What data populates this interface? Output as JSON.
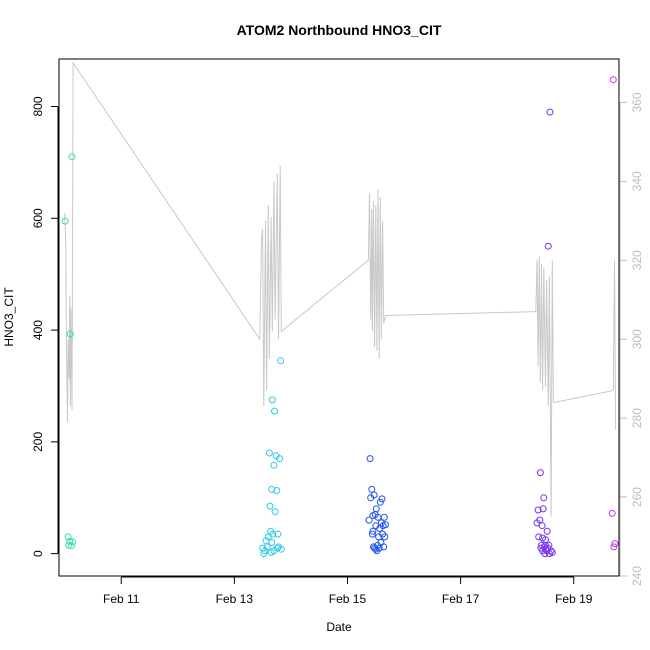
{
  "chart_data": {
    "type": "scatter",
    "title": "ATOM2 Northbound HNO3_CIT",
    "xlabel": "Date",
    "ylabel": "HNO3_CIT",
    "xlim": [
      9.9,
      19.8
    ],
    "ylim": [
      -40,
      885
    ],
    "y2lim": [
      240,
      371
    ],
    "x_ticks": [
      {
        "v": 11,
        "label": "Feb 11"
      },
      {
        "v": 13,
        "label": "Feb 13"
      },
      {
        "v": 15,
        "label": "Feb 15"
      },
      {
        "v": 17,
        "label": "Feb 17"
      },
      {
        "v": 19,
        "label": "Feb 19"
      }
    ],
    "y_ticks": [
      {
        "v": 0,
        "label": "0"
      },
      {
        "v": 200,
        "label": "200"
      },
      {
        "v": 400,
        "label": "400"
      },
      {
        "v": 600,
        "label": "600"
      },
      {
        "v": 800,
        "label": "800"
      }
    ],
    "y2_ticks": [
      {
        "v": 240,
        "label": "240"
      },
      {
        "v": 260,
        "label": "260"
      },
      {
        "v": 280,
        "label": "280"
      },
      {
        "v": 300,
        "label": "300"
      },
      {
        "v": 320,
        "label": "320"
      },
      {
        "v": 340,
        "label": "340"
      },
      {
        "v": 360,
        "label": "360"
      }
    ],
    "colors": {
      "line": "#c8c8c8",
      "axis": "#000000",
      "right_axis": "#bdbdbd"
    },
    "point_groups": [
      {
        "color": "#33e0a6",
        "points": [
          [
            10.01,
            595
          ],
          [
            10.06,
            30
          ],
          [
            10.07,
            15
          ],
          [
            10.09,
            22
          ],
          [
            10.1,
            393
          ],
          [
            10.12,
            14
          ],
          [
            10.13,
            710
          ],
          [
            10.14,
            21
          ]
        ]
      },
      {
        "color": "#2ecbe6",
        "points": [
          [
            13.5,
            10
          ],
          [
            13.52,
            0
          ],
          [
            13.54,
            5
          ],
          [
            13.56,
            23
          ],
          [
            13.58,
            12
          ],
          [
            13.6,
            30
          ],
          [
            13.62,
            180
          ],
          [
            13.63,
            85
          ],
          [
            13.64,
            40
          ],
          [
            13.65,
            2
          ],
          [
            13.66,
            115
          ],
          [
            13.67,
            275
          ],
          [
            13.68,
            35
          ],
          [
            13.7,
            158
          ],
          [
            13.71,
            255
          ],
          [
            13.72,
            75
          ],
          [
            13.74,
            175
          ],
          [
            13.75,
            113
          ],
          [
            13.76,
            10
          ],
          [
            13.77,
            35
          ],
          [
            13.78,
            12
          ],
          [
            13.8,
            170
          ],
          [
            13.82,
            345
          ],
          [
            13.83,
            8
          ],
          [
            13.66,
            20
          ],
          [
            13.7,
            5
          ]
        ]
      },
      {
        "color": "#2255ee",
        "points": [
          [
            15.38,
            60
          ],
          [
            15.4,
            170
          ],
          [
            15.41,
            100
          ],
          [
            15.43,
            115
          ],
          [
            15.44,
            35
          ],
          [
            15.45,
            68
          ],
          [
            15.46,
            12
          ],
          [
            15.47,
            105
          ],
          [
            15.48,
            10
          ],
          [
            15.49,
            70
          ],
          [
            15.5,
            50
          ],
          [
            15.51,
            80
          ],
          [
            15.52,
            5
          ],
          [
            15.53,
            15
          ],
          [
            15.54,
            65
          ],
          [
            15.55,
            30
          ],
          [
            15.56,
            10
          ],
          [
            15.57,
            45
          ],
          [
            15.58,
            92
          ],
          [
            15.59,
            20
          ],
          [
            15.6,
            55
          ],
          [
            15.61,
            98
          ],
          [
            15.62,
            35
          ],
          [
            15.63,
            50
          ],
          [
            15.64,
            12
          ],
          [
            15.65,
            65
          ],
          [
            15.66,
            30
          ],
          [
            15.67,
            52
          ],
          [
            15.45,
            40
          ],
          [
            15.5,
            8
          ]
        ]
      },
      {
        "color": "#7733ee",
        "points": [
          [
            18.35,
            55
          ],
          [
            18.37,
            78
          ],
          [
            18.38,
            30
          ],
          [
            18.4,
            60
          ],
          [
            18.41,
            145
          ],
          [
            18.42,
            10
          ],
          [
            18.43,
            15
          ],
          [
            18.44,
            50
          ],
          [
            18.45,
            5
          ],
          [
            18.46,
            80
          ],
          [
            18.47,
            100
          ],
          [
            18.48,
            12
          ],
          [
            18.49,
            0
          ],
          [
            18.5,
            15
          ],
          [
            18.51,
            8
          ],
          [
            18.52,
            5
          ],
          [
            18.53,
            40
          ],
          [
            18.54,
            10
          ],
          [
            18.55,
            550
          ],
          [
            18.56,
            15
          ],
          [
            18.57,
            0
          ],
          [
            18.58,
            790
          ],
          [
            18.6,
            5
          ],
          [
            18.62,
            2
          ],
          [
            18.5,
            25
          ],
          [
            18.45,
            28
          ]
        ]
      },
      {
        "color": "#cc33ee",
        "points": [
          [
            19.68,
            72
          ],
          [
            19.7,
            848
          ],
          [
            19.71,
            12
          ],
          [
            19.73,
            18
          ]
        ]
      }
    ],
    "line_series": [
      [
        10.0,
        332
      ],
      [
        10.02,
        324
      ],
      [
        10.03,
        300
      ],
      [
        10.05,
        279
      ],
      [
        10.06,
        300
      ],
      [
        10.08,
        290
      ],
      [
        10.09,
        311
      ],
      [
        10.1,
        283
      ],
      [
        10.11,
        308
      ],
      [
        10.13,
        282
      ],
      [
        10.15,
        370
      ],
      [
        13.45,
        300
      ],
      [
        13.48,
        325
      ],
      [
        13.5,
        328
      ],
      [
        13.52,
        283
      ],
      [
        13.55,
        330
      ],
      [
        13.57,
        287
      ],
      [
        13.6,
        334
      ],
      [
        13.62,
        295
      ],
      [
        13.65,
        331
      ],
      [
        13.67,
        302
      ],
      [
        13.7,
        340
      ],
      [
        13.72,
        305
      ],
      [
        13.76,
        342
      ],
      [
        13.78,
        300
      ],
      [
        13.81,
        344
      ],
      [
        13.83,
        302
      ],
      [
        15.37,
        320
      ],
      [
        15.39,
        337
      ],
      [
        15.41,
        305
      ],
      [
        15.43,
        333
      ],
      [
        15.44,
        302
      ],
      [
        15.46,
        335
      ],
      [
        15.48,
        298
      ],
      [
        15.5,
        334
      ],
      [
        15.52,
        297
      ],
      [
        15.54,
        338
      ],
      [
        15.56,
        295
      ],
      [
        15.58,
        336
      ],
      [
        15.6,
        300
      ],
      [
        15.62,
        330
      ],
      [
        15.64,
        304
      ],
      [
        15.67,
        306
      ],
      [
        18.33,
        307
      ],
      [
        18.35,
        320
      ],
      [
        18.37,
        293
      ],
      [
        18.39,
        321
      ],
      [
        18.41,
        289
      ],
      [
        18.43,
        319
      ],
      [
        18.45,
        287
      ],
      [
        18.47,
        318
      ],
      [
        18.5,
        288
      ],
      [
        18.52,
        315
      ],
      [
        18.55,
        283
      ],
      [
        18.57,
        316
      ],
      [
        18.6,
        255
      ],
      [
        18.62,
        320
      ],
      [
        18.64,
        284
      ],
      [
        18.66,
        284
      ],
      [
        19.7,
        287
      ],
      [
        19.72,
        320
      ],
      [
        19.74,
        277
      ]
    ]
  }
}
